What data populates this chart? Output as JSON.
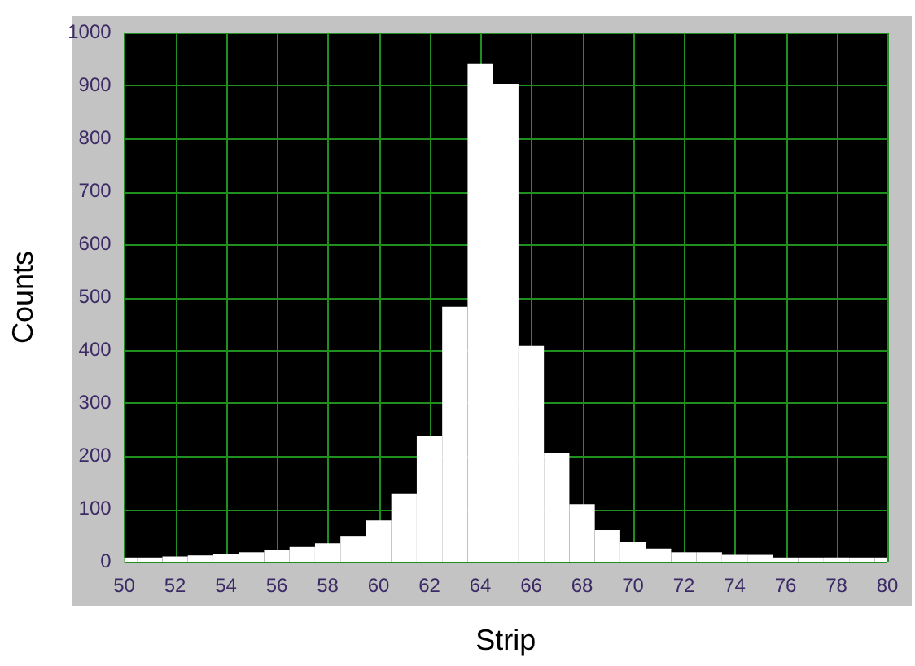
{
  "chart_data": {
    "type": "histogram",
    "xlabel": "Strip",
    "ylabel": "Counts",
    "bins": [
      50,
      50.5,
      51.5,
      52.5,
      53.5,
      54.5,
      55.5,
      56.5,
      57.5,
      58.5,
      59.5,
      60.5,
      61.5,
      62.5,
      63.5,
      64.5,
      65.5,
      66.5,
      67.5,
      68.5,
      69.5,
      70.5,
      71.5,
      72.5,
      73.5,
      74.5,
      75.5,
      76.5,
      77.5,
      78.5,
      79.5,
      80
    ],
    "values": [
      8,
      8,
      10,
      12,
      14,
      18,
      22,
      28,
      35,
      49,
      78,
      128,
      238,
      482,
      942,
      903,
      408,
      205,
      109,
      60,
      37,
      25,
      18,
      18,
      13,
      13,
      8,
      8,
      8,
      8,
      8
    ],
    "color": "#ffffff",
    "xlim": [
      50,
      80
    ],
    "xticks": [
      50,
      52,
      54,
      56,
      58,
      60,
      62,
      64,
      66,
      68,
      70,
      72,
      74,
      76,
      78,
      80
    ],
    "ylim": [
      0,
      1000
    ],
    "yticks": [
      0,
      100,
      200,
      300,
      400,
      500,
      600,
      700,
      800,
      900,
      1000
    ],
    "grid": true
  }
}
